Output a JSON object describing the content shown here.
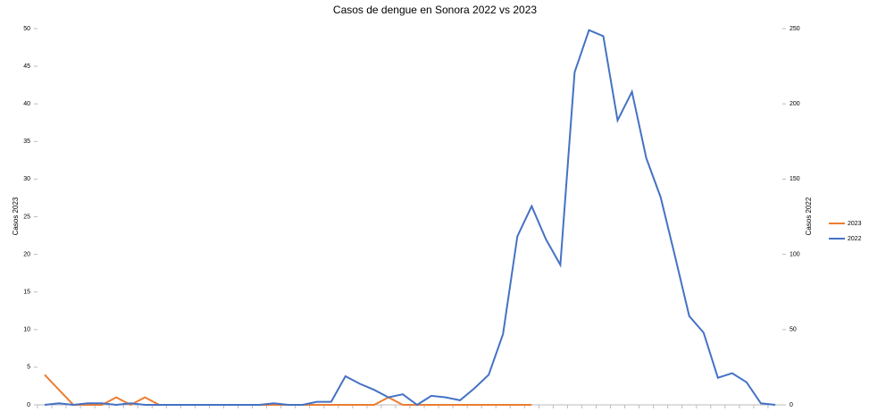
{
  "chart_data": {
    "type": "line",
    "title": "Casos de dengue en Sonora 2022 vs 2023",
    "ylabel": "Casos 2023",
    "y2label": "Casos 2022",
    "categories": [
      null,
      null,
      null,
      null,
      null,
      null,
      null,
      null,
      null,
      null,
      null,
      null,
      null,
      null,
      null,
      null,
      null,
      null,
      null,
      null,
      null,
      null,
      null,
      null,
      null,
      null,
      null,
      null,
      null,
      null,
      null,
      null,
      null,
      null,
      null,
      null,
      null,
      null,
      null,
      null,
      null,
      null,
      null,
      null,
      null,
      null,
      null,
      null,
      null,
      null,
      null,
      null
    ],
    "ylim": [
      0,
      50
    ],
    "yticks": [
      0,
      5,
      10,
      15,
      20,
      25,
      30,
      35,
      40,
      45,
      50
    ],
    "y2lim": [
      0,
      250
    ],
    "y2ticks": [
      0,
      50,
      100,
      150,
      200,
      250
    ],
    "legend": "right",
    "series": [
      {
        "name": "2023",
        "color": "#ed7d31",
        "values": [
          4,
          2,
          0,
          0,
          0,
          1,
          0,
          1,
          0,
          0,
          0,
          0,
          0,
          0,
          0,
          0,
          0,
          0,
          0,
          0,
          0,
          0,
          0,
          0,
          1,
          0,
          0,
          0,
          0,
          0,
          0,
          0,
          0,
          0,
          0,
          null,
          null,
          null,
          null,
          null,
          null,
          null,
          null,
          null,
          null,
          null,
          null,
          null,
          null,
          null,
          null,
          null
        ]
      },
      {
        "name": "2022",
        "color": "#4472c4",
        "axis": "y2",
        "values": [
          0,
          1,
          0,
          1,
          1,
          0,
          1,
          0,
          0,
          0,
          0,
          0,
          0,
          0,
          0,
          0,
          1,
          0,
          0,
          2,
          2,
          19,
          14,
          10,
          5,
          7,
          0,
          6,
          5,
          3,
          11,
          20,
          47,
          112,
          132,
          110,
          93,
          221,
          249,
          245,
          189,
          208,
          164,
          138,
          99,
          59,
          48,
          18,
          21,
          15,
          1,
          0
        ]
      }
    ]
  }
}
